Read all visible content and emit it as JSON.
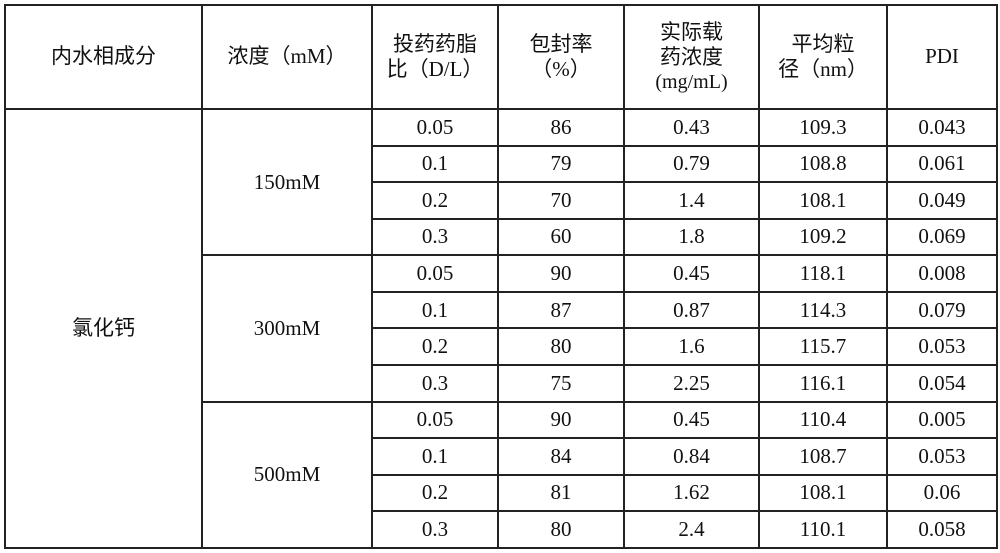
{
  "headers": {
    "component": "内水相成分",
    "concentration": "浓度（mM）",
    "ratio_line1": "投药药脂",
    "ratio_line2": "比（D/L）",
    "ee_line1": "包封率",
    "ee_line2": "（%）",
    "loading_line1": "实际载",
    "loading_line2": "药浓度",
    "loading_line3": "(mg/mL)",
    "size_line1": "平均粒",
    "size_line2": "径（nm）",
    "pdi": "PDI"
  },
  "component": "氯化钙",
  "groups": [
    {
      "concentration": "150mM",
      "rows": [
        {
          "dl": "0.05",
          "ee": "86",
          "conc": "0.43",
          "size": "109.3",
          "pdi": "0.043"
        },
        {
          "dl": "0.1",
          "ee": "79",
          "conc": "0.79",
          "size": "108.8",
          "pdi": "0.061"
        },
        {
          "dl": "0.2",
          "ee": "70",
          "conc": "1.4",
          "size": "108.1",
          "pdi": "0.049"
        },
        {
          "dl": "0.3",
          "ee": "60",
          "conc": "1.8",
          "size": "109.2",
          "pdi": "0.069"
        }
      ]
    },
    {
      "concentration": "300mM",
      "rows": [
        {
          "dl": "0.05",
          "ee": "90",
          "conc": "0.45",
          "size": "118.1",
          "pdi": "0.008"
        },
        {
          "dl": "0.1",
          "ee": "87",
          "conc": "0.87",
          "size": "114.3",
          "pdi": "0.079"
        },
        {
          "dl": "0.2",
          "ee": "80",
          "conc": "1.6",
          "size": "115.7",
          "pdi": "0.053"
        },
        {
          "dl": "0.3",
          "ee": "75",
          "conc": "2.25",
          "size": "116.1",
          "pdi": "0.054"
        }
      ]
    },
    {
      "concentration": "500mM",
      "rows": [
        {
          "dl": "0.05",
          "ee": "90",
          "conc": "0.45",
          "size": "110.4",
          "pdi": "0.005"
        },
        {
          "dl": "0.1",
          "ee": "84",
          "conc": "0.84",
          "size": "108.7",
          "pdi": "0.053"
        },
        {
          "dl": "0.2",
          "ee": "81",
          "conc": "1.62",
          "size": "108.1",
          "pdi": "0.06"
        },
        {
          "dl": "0.3",
          "ee": "80",
          "conc": "2.4",
          "size": "110.1",
          "pdi": "0.058"
        }
      ]
    }
  ]
}
